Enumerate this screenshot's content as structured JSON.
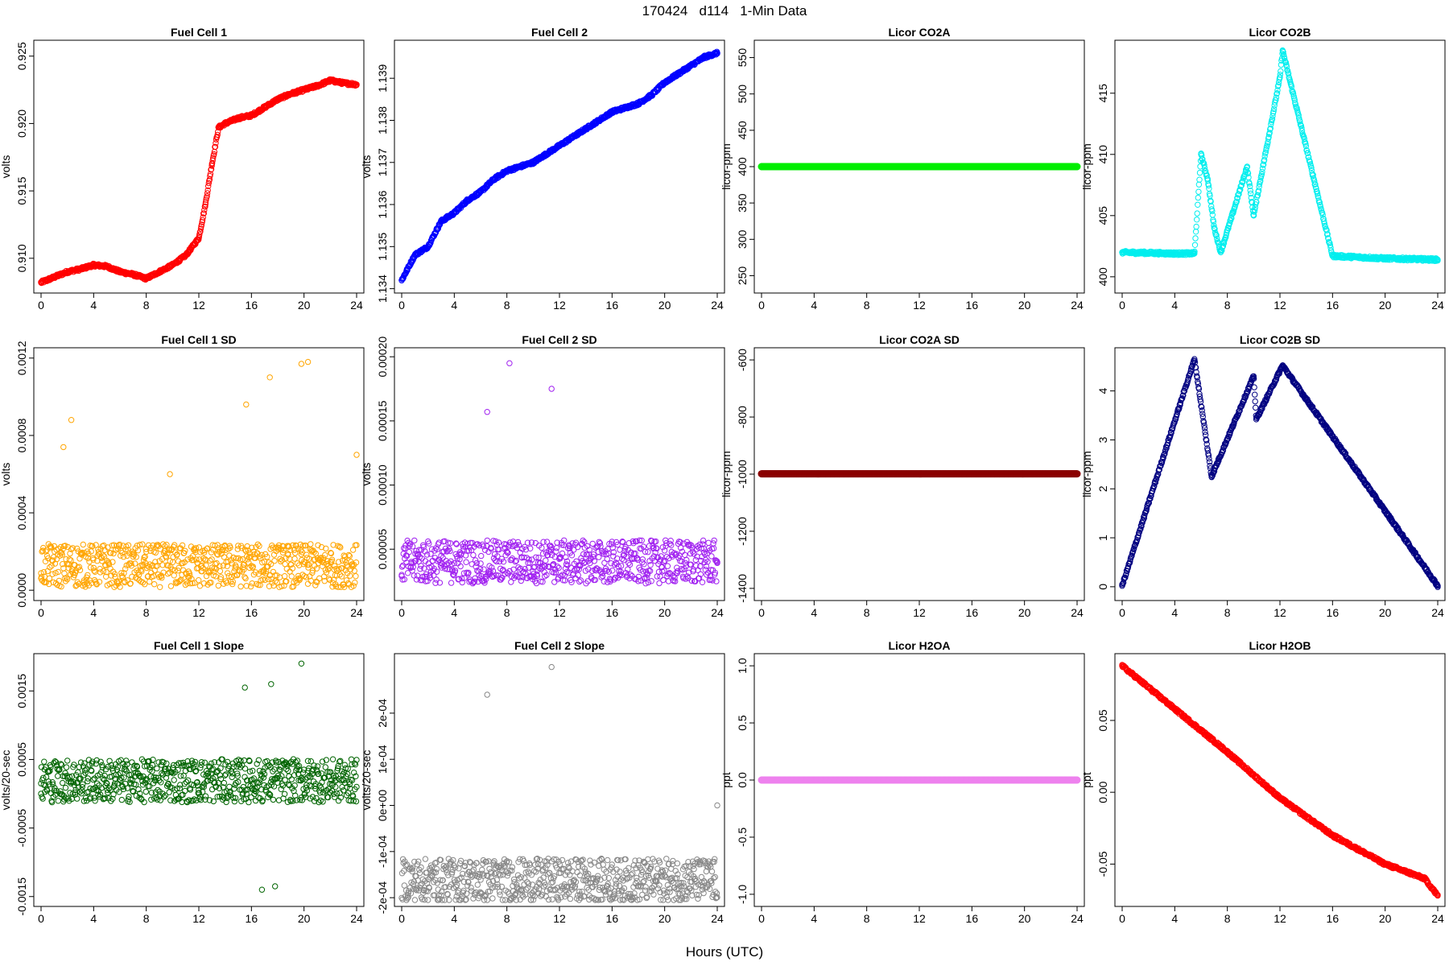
{
  "title": "170424   d114   1-Min Data",
  "x_axis_label": "Hours (UTC)",
  "chart_data": [
    {
      "type": "scatter",
      "title": "Fuel Cell 1",
      "ylabel": "volts",
      "color": "#ff0000",
      "xlim": [
        0,
        24
      ],
      "ylim": [
        0.9079,
        0.9257
      ],
      "xticks": [
        "0",
        "4",
        "8",
        "12",
        "16",
        "20",
        "24"
      ],
      "yticks": [
        "0.910",
        "0.915",
        "0.920",
        "0.925"
      ],
      "ytick_values": [
        0.91,
        0.915,
        0.92,
        0.925
      ],
      "series": [
        {
          "x": [
            0,
            1,
            2,
            3,
            4,
            5,
            6,
            7,
            8,
            9,
            10,
            11,
            12,
            12.5,
            13,
            13.5,
            14,
            15,
            16,
            17,
            18,
            19,
            20,
            21,
            22,
            23,
            24
          ],
          "values": [
            0.9082,
            0.9086,
            0.909,
            0.9092,
            0.9095,
            0.9094,
            0.909,
            0.9088,
            0.9085,
            0.909,
            0.9095,
            0.9102,
            0.9115,
            0.914,
            0.917,
            0.9197,
            0.92,
            0.9204,
            0.9206,
            0.9212,
            0.9218,
            0.9222,
            0.9225,
            0.9228,
            0.9232,
            0.923,
            0.9229
          ]
        }
      ]
    },
    {
      "type": "scatter",
      "title": "Fuel Cell 2",
      "ylabel": "volts",
      "color": "#0000ff",
      "xlim": [
        0,
        24
      ],
      "ylim": [
        1.13405,
        1.13975
      ],
      "xticks": [
        "0",
        "4",
        "8",
        "12",
        "16",
        "20",
        "24"
      ],
      "yticks": [
        "1.134",
        "1.135",
        "1.136",
        "1.137",
        "1.138",
        "1.139"
      ],
      "ytick_values": [
        1.134,
        1.135,
        1.136,
        1.137,
        1.138,
        1.139
      ],
      "series": [
        {
          "x": [
            0,
            1,
            2,
            3,
            4,
            5,
            6,
            7,
            8,
            9,
            10,
            11,
            12,
            13,
            14,
            15,
            16,
            17,
            18,
            19,
            20,
            21,
            22,
            23,
            24
          ],
          "values": [
            1.1342,
            1.1348,
            1.135,
            1.1356,
            1.1358,
            1.1361,
            1.1363,
            1.1366,
            1.1368,
            1.1369,
            1.137,
            1.1372,
            1.1374,
            1.1376,
            1.1378,
            1.138,
            1.1382,
            1.1383,
            1.1384,
            1.1386,
            1.1389,
            1.1391,
            1.1393,
            1.1395,
            1.1396
          ]
        }
      ]
    },
    {
      "type": "scatter",
      "title": "Licor CO2A",
      "ylabel": "licor-ppm",
      "color": "#00ee00",
      "xlim": [
        0,
        24
      ],
      "ylim": [
        235,
        565
      ],
      "xticks": [
        "0",
        "4",
        "8",
        "12",
        "16",
        "20",
        "24"
      ],
      "yticks": [
        "250",
        "300",
        "350",
        "400",
        "450",
        "500",
        "550"
      ],
      "ytick_values": [
        250,
        300,
        350,
        400,
        450,
        500,
        550
      ],
      "series": [
        {
          "x": [
            0,
            24
          ],
          "values": [
            400,
            400
          ]
        }
      ]
    },
    {
      "type": "scatter",
      "title": "Licor CO2B",
      "ylabel": "licor-ppm",
      "color": "#00eeee",
      "xlim": [
        0,
        24
      ],
      "ylim": [
        399.2,
        418.8
      ],
      "xticks": [
        "0",
        "4",
        "8",
        "12",
        "16",
        "20",
        "24"
      ],
      "yticks": [
        "400",
        "405",
        "410",
        "415"
      ],
      "ytick_values": [
        400,
        405,
        410,
        415
      ],
      "series": [
        {
          "x": [
            0,
            4,
            5.5,
            6,
            6.5,
            7,
            7.5,
            9.5,
            10,
            12,
            12.2,
            16,
            20,
            24
          ],
          "values": [
            402.0,
            401.9,
            401.9,
            410,
            408,
            404,
            402,
            409,
            405,
            416.3,
            418.5,
            401.7,
            401.5,
            401.4
          ]
        }
      ]
    },
    {
      "type": "scatter",
      "title": "Fuel Cell 1 SD",
      "ylabel": "volts",
      "color": "#ffa500",
      "xlim": [
        0,
        24
      ],
      "ylim": [
        -2e-05,
        0.00122
      ],
      "xticks": [
        "0",
        "4",
        "8",
        "12",
        "16",
        "20",
        "24"
      ],
      "yticks": [
        "0.0000",
        "0.0004",
        "0.0008",
        "0.0012"
      ],
      "ytick_values": [
        0,
        0.0004,
        0.0008,
        0.0012
      ],
      "series": [
        {
          "x": [
            0,
            1.7,
            2.3,
            3.5,
            9.8,
            15.6,
            17.4,
            19.8,
            20.3,
            24
          ],
          "values": [
            6e-05,
            0.00074,
            0.00088,
            0.0002,
            0.0006,
            0.00096,
            0.0011,
            0.00117,
            0.00118,
            0.0007
          ]
        }
      ]
    },
    {
      "type": "scatter",
      "title": "Fuel Cell 2 SD",
      "ylabel": "volts",
      "color": "#a020f0",
      "xlim": [
        0,
        24
      ],
      "ylim": [
        1.5e-05,
        0.000202
      ],
      "xticks": [
        "0",
        "4",
        "8",
        "12",
        "16",
        "20",
        "24"
      ],
      "yticks": [
        "0.00005",
        "0.00010",
        "0.00015",
        "0.00020"
      ],
      "ytick_values": [
        5e-05,
        0.0001,
        0.00015,
        0.0002
      ],
      "series": [
        {
          "x": [
            0,
            6.5,
            8.2,
            11.4,
            24
          ],
          "values": [
            3e-05,
            0.000157,
            0.000195,
            0.000175,
            4e-05
          ]
        }
      ]
    },
    {
      "type": "scatter",
      "title": "Licor CO2A SD",
      "ylabel": "licor-ppm",
      "color": "#8b0000",
      "xlim": [
        0,
        24
      ],
      "ylim": [
        -1420,
        -580
      ],
      "xticks": [
        "0",
        "4",
        "8",
        "12",
        "16",
        "20",
        "24"
      ],
      "yticks": [
        "-1400",
        "-1200",
        "-1000",
        "-800",
        "-600"
      ],
      "ytick_values": [
        -1400,
        -1200,
        -1000,
        -800,
        -600
      ],
      "series": [
        {
          "x": [
            0,
            24
          ],
          "values": [
            -999,
            -999
          ]
        }
      ]
    },
    {
      "type": "scatter",
      "title": "Licor CO2B SD",
      "ylabel": "licor-ppm",
      "color": "#000080",
      "xlim": [
        0,
        24
      ],
      "ylim": [
        -0.15,
        4.75
      ],
      "xticks": [
        "0",
        "4",
        "8",
        "12",
        "16",
        "20",
        "24"
      ],
      "yticks": [
        "0",
        "1",
        "2",
        "3",
        "4"
      ],
      "ytick_values": [
        0,
        1,
        2,
        3,
        4
      ],
      "series": [
        {
          "x": [
            0,
            5.5,
            6.8,
            10,
            10.2,
            12.2,
            24
          ],
          "values": [
            0.02,
            4.65,
            2.25,
            4.3,
            3.42,
            4.52,
            0.02
          ]
        }
      ]
    },
    {
      "type": "scatter",
      "title": "Fuel Cell 1 Slope",
      "ylabel": "volts/20-sec",
      "color": "#006400",
      "xlim": [
        0,
        24
      ],
      "ylim": [
        -0.00155,
        0.00195
      ],
      "xticks": [
        "0",
        "4",
        "8",
        "12",
        "16",
        "20",
        "24"
      ],
      "yticks": [
        "-0.0015",
        "-0.0005",
        "0.0005",
        "0.0015"
      ],
      "ytick_values": [
        -0.0015,
        -0.0005,
        0.0005,
        0.0015
      ],
      "series": [
        {
          "x": [
            0,
            15.5,
            17.5,
            19.8,
            16.8,
            17.8,
            24
          ],
          "values": [
            0,
            0.00155,
            0.0016,
            0.0019,
            -0.0014,
            -0.00135,
            0.0001
          ]
        }
      ]
    },
    {
      "type": "scatter",
      "title": "Fuel Cell 2 Slope",
      "ylabel": "volts/20-sec",
      "color": "#888888",
      "xlim": [
        0,
        24
      ],
      "ylim": [
        -0.000205,
        0.000315
      ],
      "xticks": [
        "0",
        "4",
        "8",
        "12",
        "16",
        "20",
        "24"
      ],
      "yticks": [
        "-2e-04",
        "-1e-04",
        "0e+00",
        "1e-04",
        "2e-04"
      ],
      "ytick_values": [
        -0.0002,
        -0.0001,
        0,
        0.0001,
        0.0002
      ],
      "series": [
        {
          "x": [
            0.5,
            6.5,
            11.4,
            10.4,
            24
          ],
          "values": [
            -0.00019,
            0.00024,
            0.0003,
            -0.00019,
            0
          ]
        }
      ]
    },
    {
      "type": "scatter",
      "title": "Licor H2OA",
      "ylabel": "ppt",
      "color": "#ee82ee",
      "xlim": [
        0,
        24
      ],
      "ylim": [
        -1.05,
        1.05
      ],
      "xticks": [
        "0",
        "4",
        "8",
        "12",
        "16",
        "20",
        "24"
      ],
      "yticks": [
        "-1.0",
        "-0.5",
        "0.0",
        "0.5",
        "1.0"
      ],
      "ytick_values": [
        -1.0,
        -0.5,
        0.0,
        0.5,
        1.0
      ],
      "series": [
        {
          "x": [
            0,
            24
          ],
          "values": [
            0,
            0
          ]
        }
      ]
    },
    {
      "type": "scatter",
      "title": "Licor H2OB",
      "ylabel": "ppt",
      "color": "#ff0000",
      "xlim": [
        0,
        24
      ],
      "ylim": [
        -0.075,
        0.092
      ],
      "xticks": [
        "0",
        "4",
        "8",
        "12",
        "16",
        "20",
        "24"
      ],
      "yticks": [
        "-0.05",
        "0.00",
        "0.05"
      ],
      "ytick_values": [
        -0.05,
        0.0,
        0.05
      ],
      "series": [
        {
          "x": [
            0,
            4,
            8,
            12,
            16,
            20,
            23,
            24
          ],
          "values": [
            0.088,
            0.058,
            0.028,
            -0.004,
            -0.03,
            -0.05,
            -0.06,
            -0.072
          ]
        }
      ]
    }
  ]
}
